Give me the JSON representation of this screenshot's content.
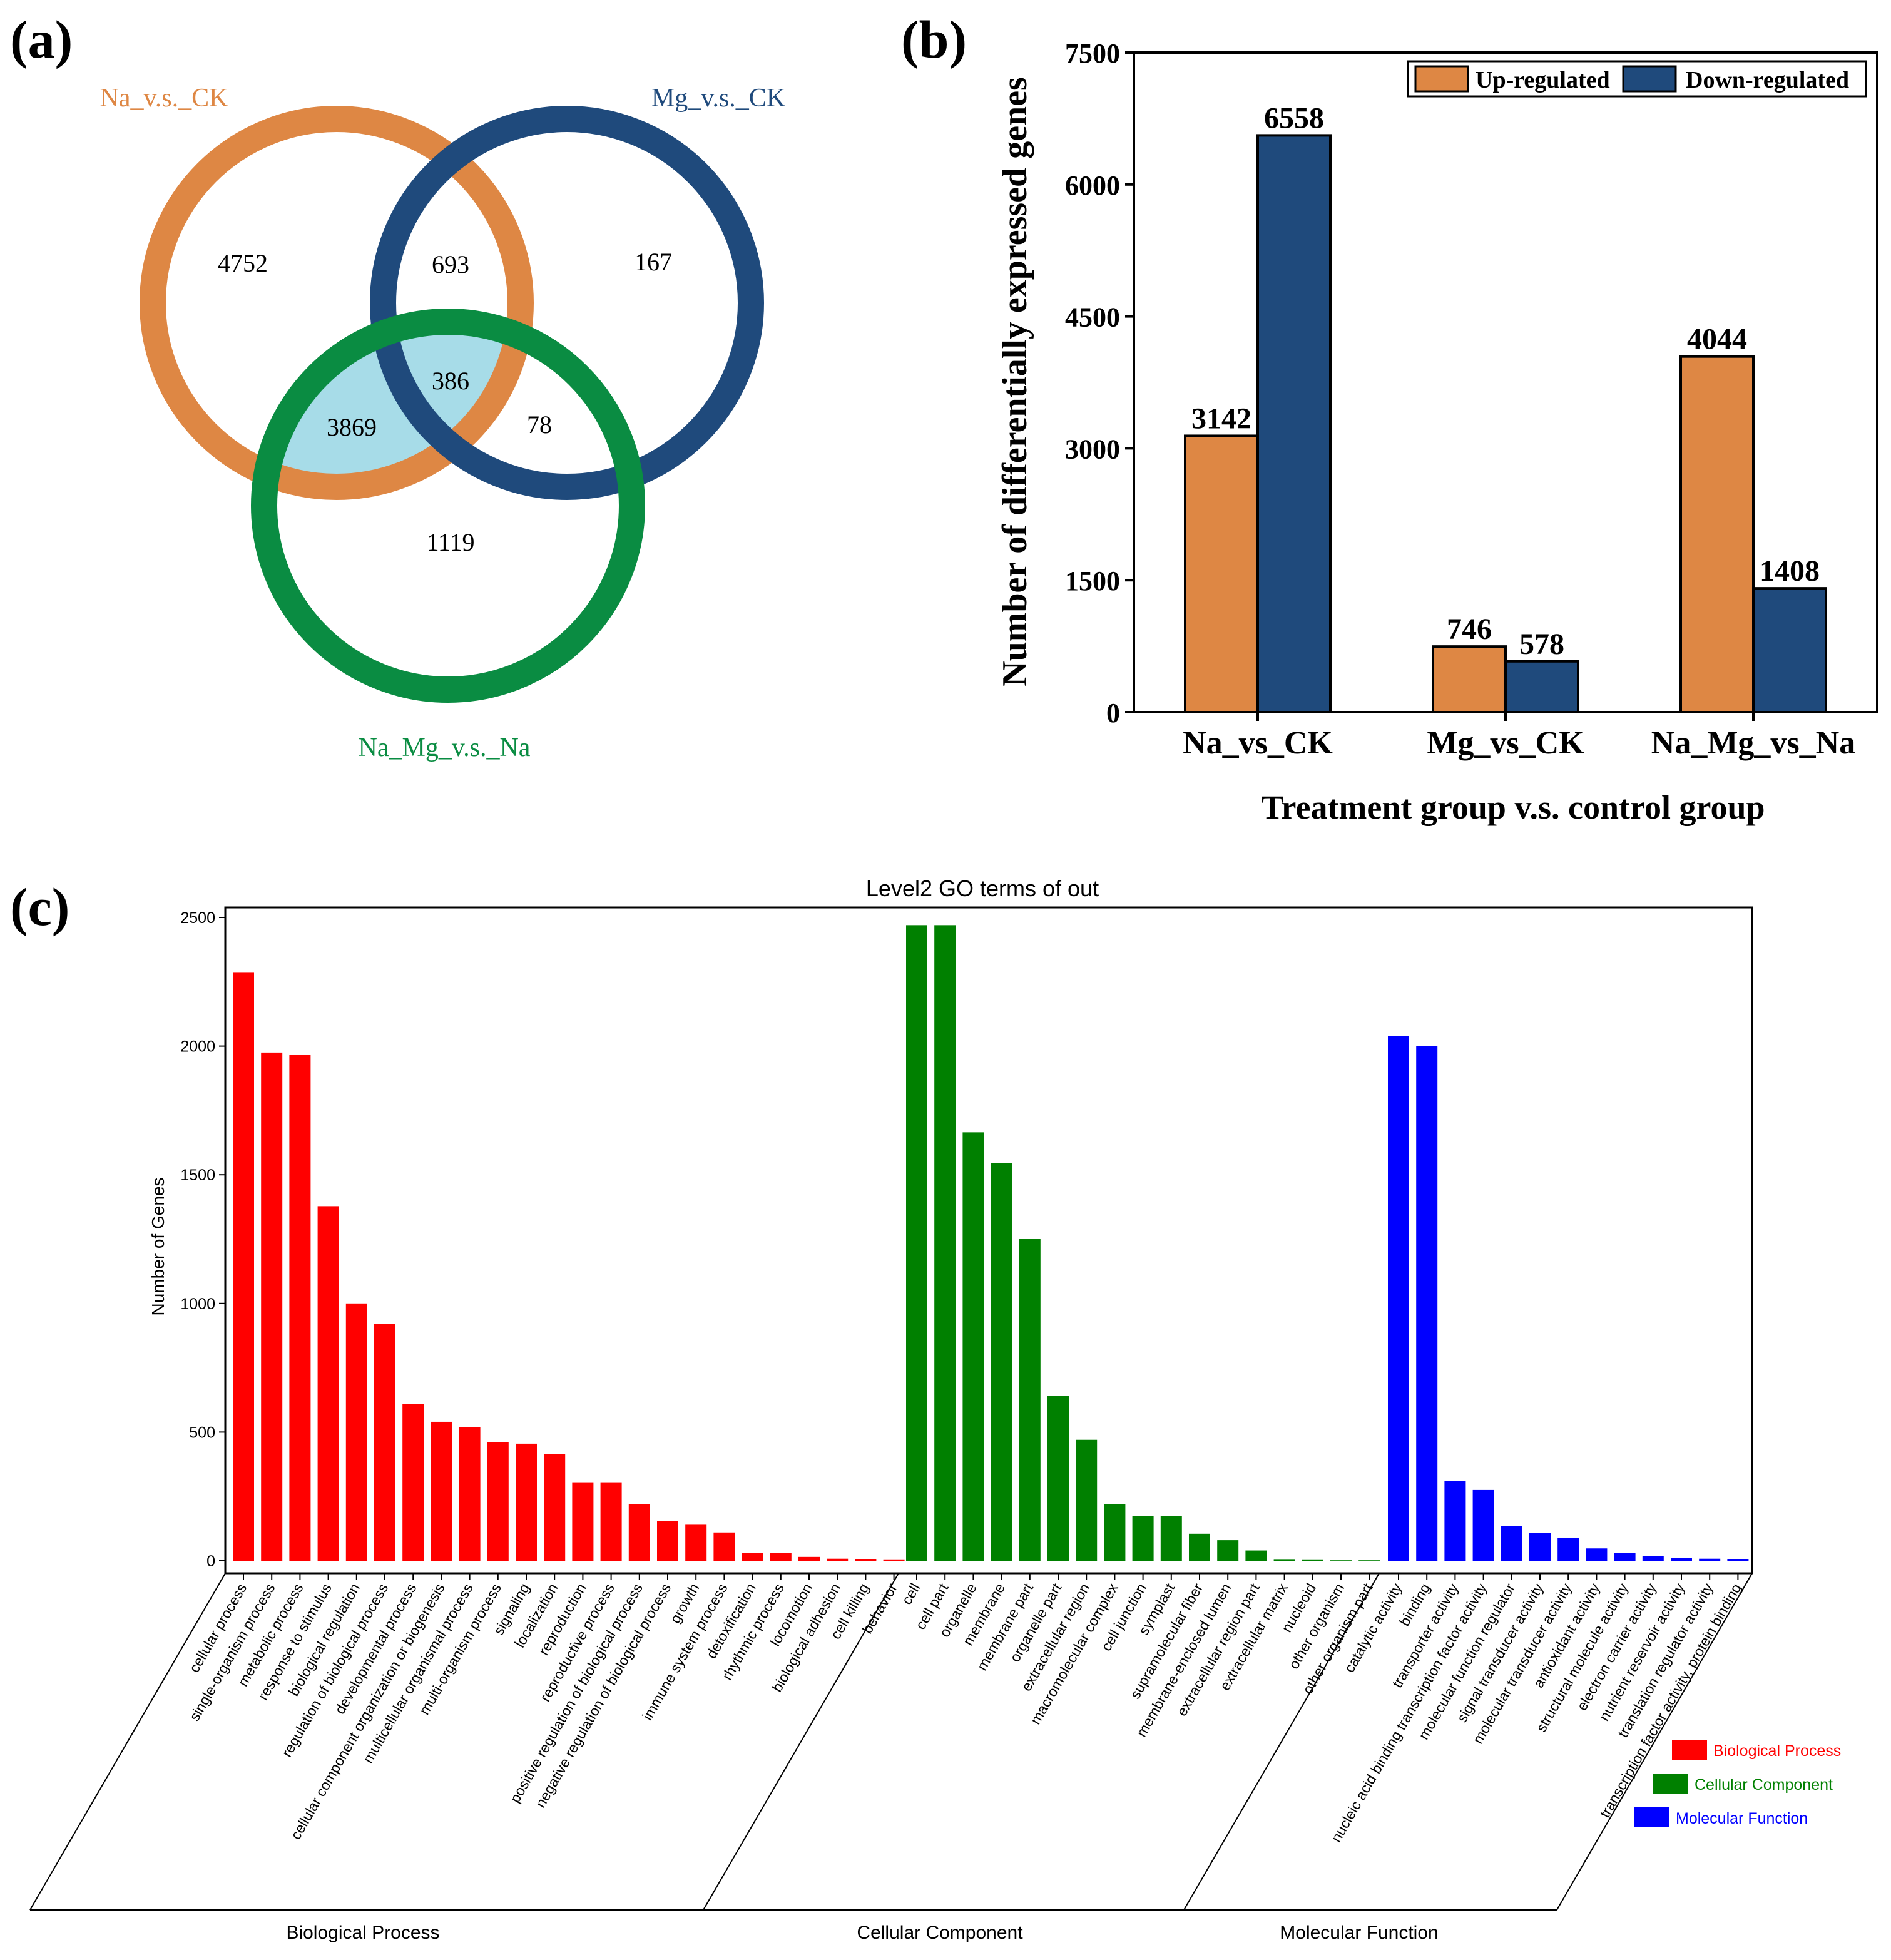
{
  "panel_labels": {
    "a": "(a)",
    "b": "(b)",
    "c": "(c)"
  },
  "colors": {
    "na": "#DE8744",
    "mg": "#1F4A7C",
    "namg": "#0A8C42",
    "overlap": "#A7DCE8",
    "up": "#DE8744",
    "down": "#1F4A7C",
    "bp": "#FF0000",
    "cc": "#008000",
    "mf": "#0000FF"
  },
  "chart_data": [
    {
      "type": "venn",
      "sets": [
        "Na_v.s._CK",
        "Mg_v.s._CK",
        "Na_Mg_v.s._Na"
      ],
      "regions": {
        "na_only": "4752",
        "mg_only": "167",
        "namg_only": "1119",
        "na_mg": "693",
        "na_namg": "3869",
        "mg_namg": "78",
        "all": "386"
      }
    },
    {
      "type": "bar",
      "categories": [
        "Na_vs_CK",
        "Mg_vs_CK",
        "Na_Mg_vs_Na"
      ],
      "series": [
        {
          "name": "Up-regulated",
          "values": [
            3142,
            746,
            4044
          ]
        },
        {
          "name": "Down-regulated",
          "values": [
            6558,
            578,
            1408
          ]
        }
      ],
      "xlabel": "Treatment group v.s. control group",
      "ylabel": "Number of differentially expressed genes",
      "ylim": [
        0,
        7500
      ],
      "yticks": [
        0,
        1500,
        3000,
        4500,
        6000,
        7500
      ],
      "legend": "top-right"
    },
    {
      "type": "bar",
      "title": "Level2 GO terms of out",
      "ylabel": "Number of Genes",
      "ylim": [
        0,
        2500
      ],
      "yticks": [
        0,
        500,
        1000,
        1500,
        2000,
        2500
      ],
      "legend": "bottom-right",
      "groups": [
        {
          "name": "Biological Process",
          "categories": [
            "cellular process",
            "single-organism process",
            "metabolic process",
            "response to stimulus",
            "biological regulation",
            "regulation of biological process",
            "developmental process",
            "cellular component organization or biogenesis",
            "multicellular organismal process",
            "multi-organism process",
            "signaling",
            "localization",
            "reproduction",
            "reproductive process",
            "positive regulation of biological process",
            "negative regulation of biological process",
            "growth",
            "immune system process",
            "detoxification",
            "rhythmic process",
            "locomotion",
            "biological adhesion",
            "cell killing",
            "behavior"
          ],
          "values": [
            2285,
            1975,
            1965,
            1378,
            1000,
            920,
            610,
            540,
            520,
            460,
            455,
            415,
            305,
            305,
            220,
            155,
            140,
            110,
            30,
            30,
            15,
            8,
            6,
            3
          ]
        },
        {
          "name": "Cellular Component",
          "categories": [
            "cell",
            "cell part",
            "organelle",
            "membrane",
            "membrane part",
            "organelle part",
            "extracellular region",
            "macromolecular complex",
            "cell junction",
            "symplast",
            "supramolecular fiber",
            "membrane-enclosed lumen",
            "extracellular region part",
            "extracellular matrix",
            "nucleoid",
            "other organism",
            "other organism part"
          ],
          "values": [
            2470,
            2470,
            1665,
            1545,
            1250,
            640,
            470,
            220,
            175,
            175,
            105,
            80,
            40,
            4,
            3,
            2,
            2
          ]
        },
        {
          "name": "Molecular Function",
          "categories": [
            "catalytic activity",
            "binding",
            "transporter activity",
            "nucleic acid binding transcription factor activity",
            "molecular function regulator",
            "signal transducer activity",
            "molecular transducer activity",
            "antioxidant activity",
            "structural molecule activity",
            "electron carrier activity",
            "nutrient reservoir activity",
            "translation regulator activity",
            "transcription factor activity, protein binding"
          ],
          "values": [
            2040,
            2000,
            310,
            275,
            135,
            108,
            90,
            48,
            30,
            18,
            10,
            8,
            5
          ]
        }
      ]
    }
  ]
}
